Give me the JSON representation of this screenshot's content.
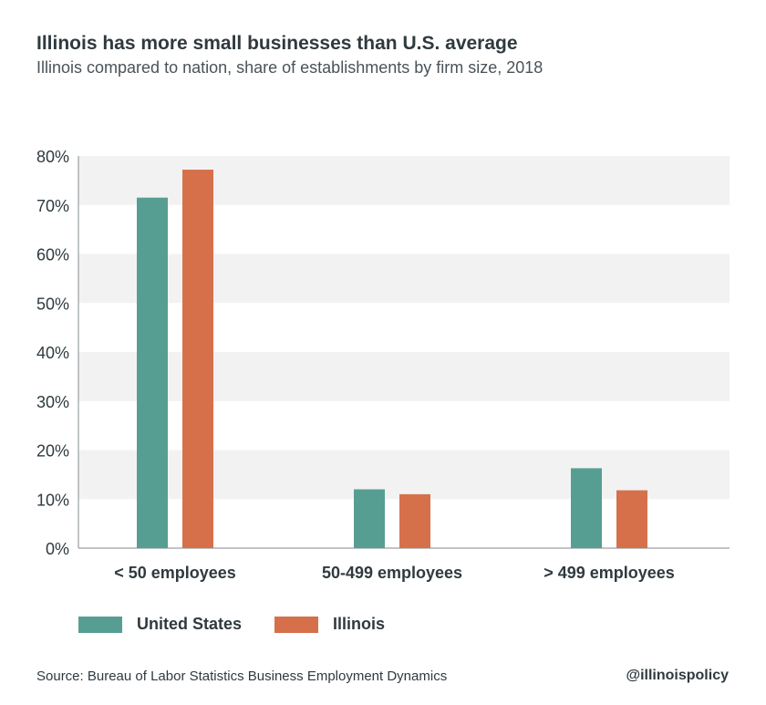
{
  "title": "Illinois has more small businesses than U.S. average",
  "subtitle": "Illinois compared to nation, share of establishments by firm size, 2018",
  "source": "Source: Bureau of Labor Statistics Business Employment Dynamics",
  "handle": "@illinoispolicy",
  "colors": {
    "united_states": "#579e92",
    "illinois": "#d6704b",
    "band": "#f2f2f2",
    "axis": "#9aa0a3",
    "text": "#2f3a3f"
  },
  "chart_data": {
    "type": "bar",
    "title": "Illinois has more small businesses than U.S. average",
    "subtitle": "Illinois compared to nation, share of establishments by firm size, 2018",
    "xlabel": "",
    "ylabel": "",
    "categories": [
      "< 50 employees",
      "50-499 employees",
      "> 499 employees"
    ],
    "series": [
      {
        "name": "United States",
        "values": [
          71.5,
          12.0,
          16.3
        ]
      },
      {
        "name": "Illinois",
        "values": [
          77.2,
          11.0,
          11.8
        ]
      }
    ],
    "ylim": [
      0,
      80
    ],
    "yticks": [
      "0%",
      "10%",
      "20%",
      "30%",
      "40%",
      "50%",
      "60%",
      "70%",
      "80%"
    ],
    "grid": "alternating horizontal bands",
    "legend": "bottom-left"
  }
}
